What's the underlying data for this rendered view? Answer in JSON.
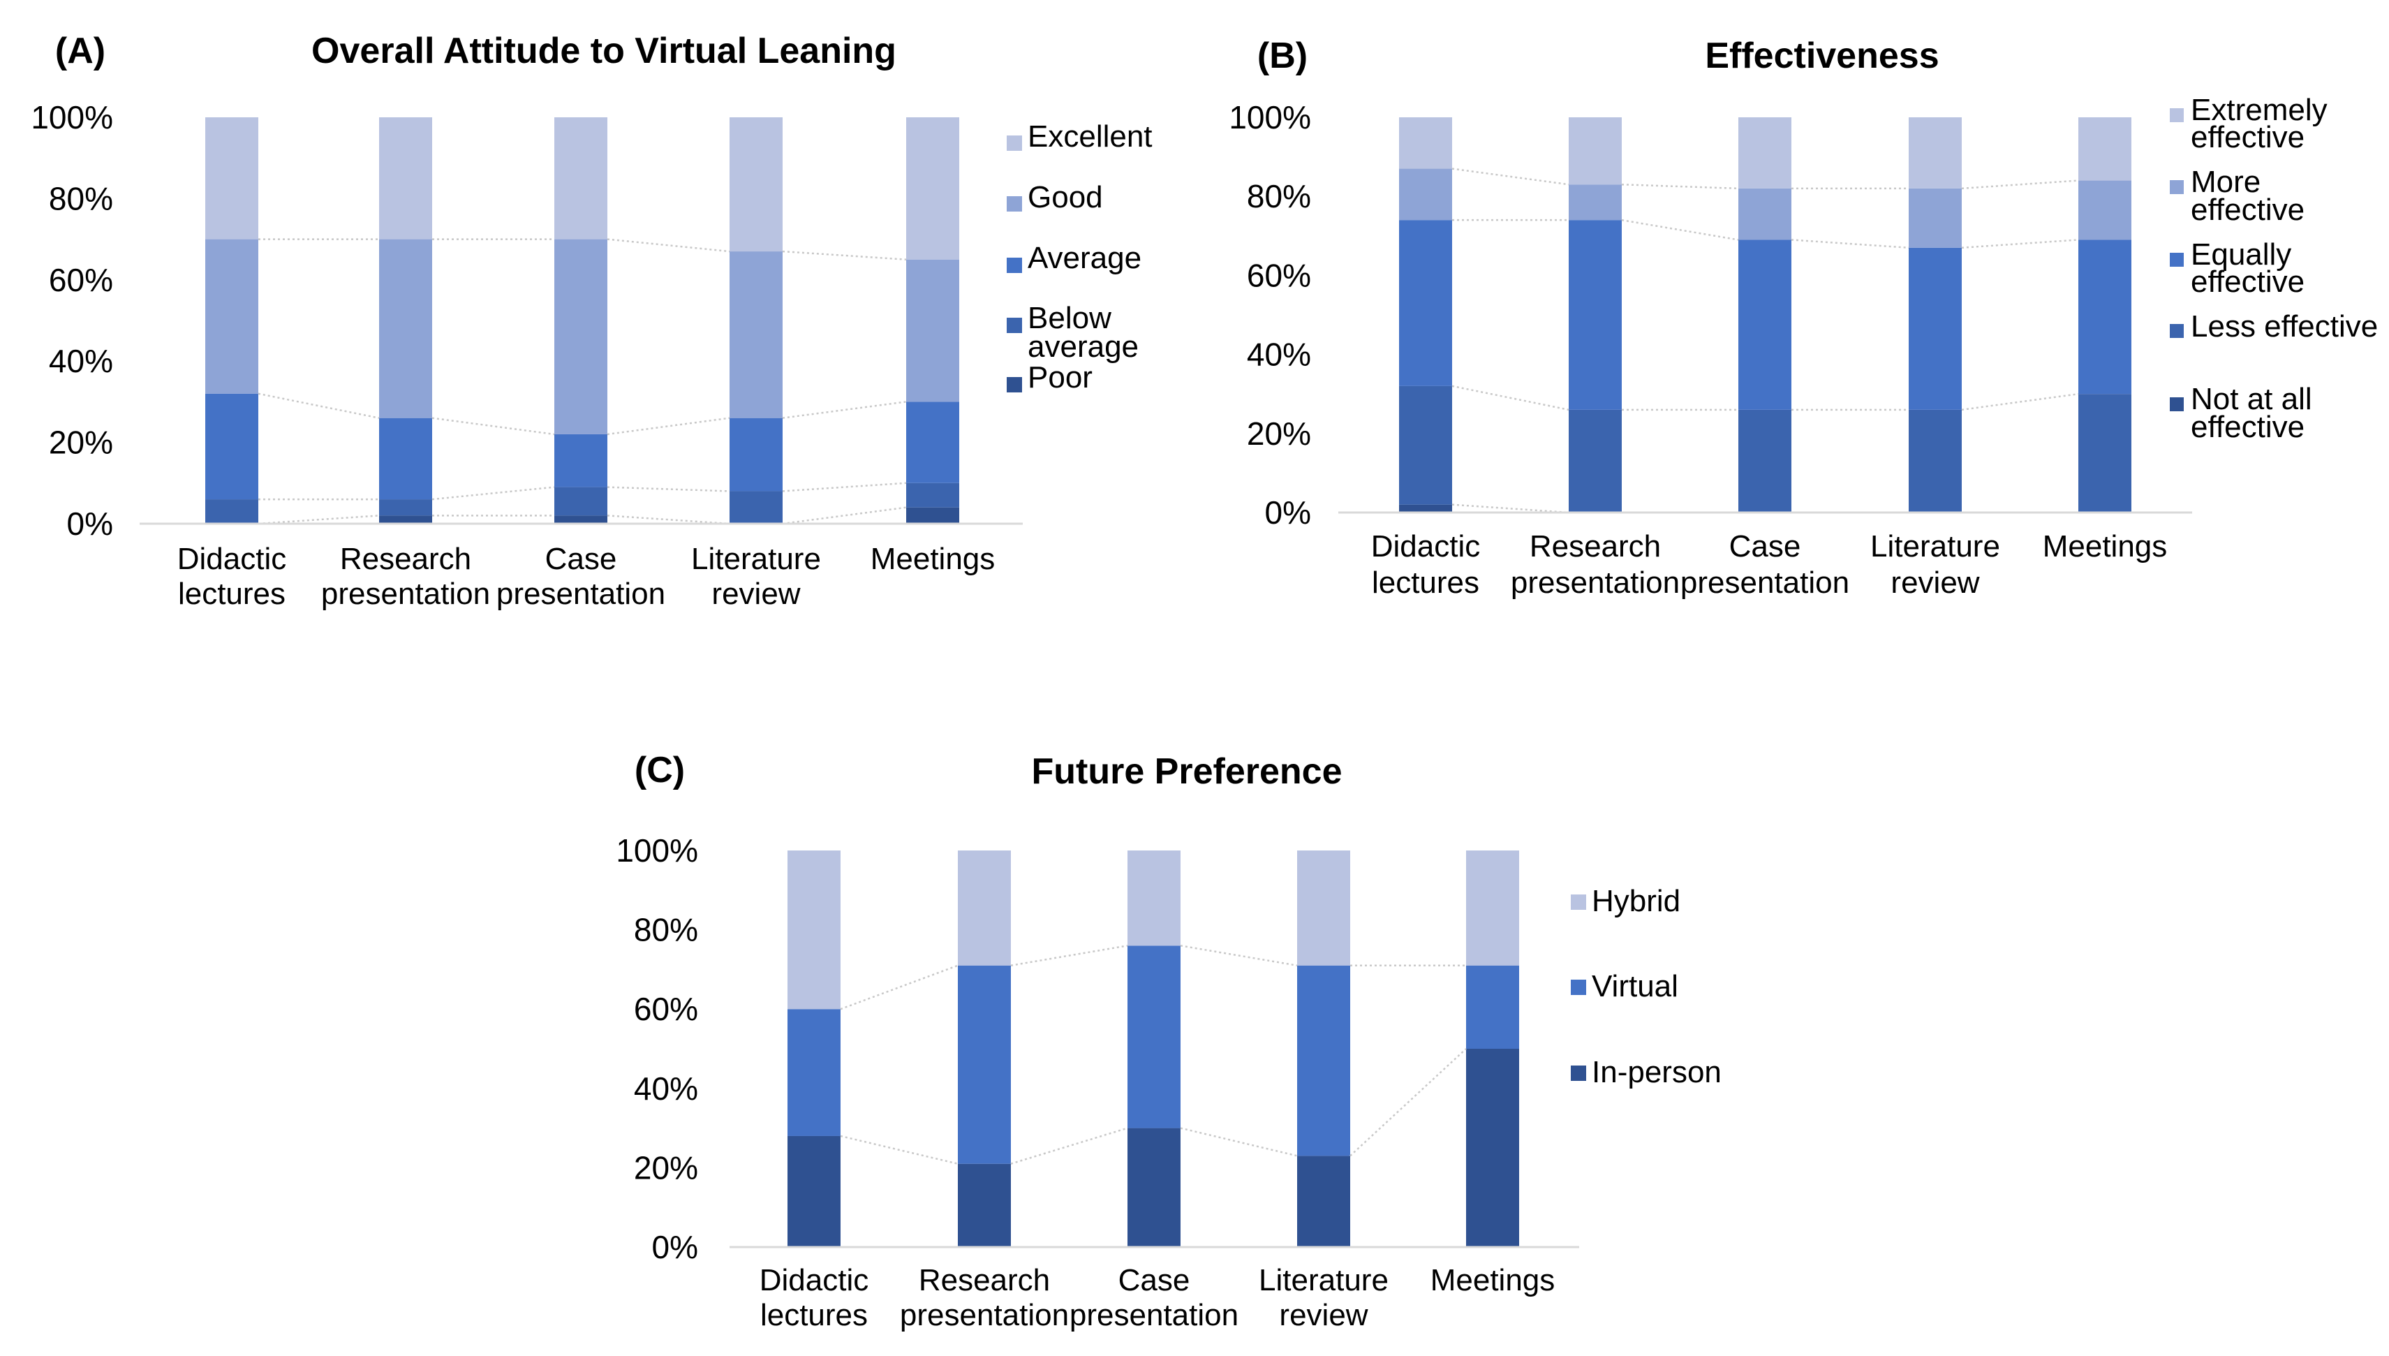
{
  "colors": {
    "c_lightest": "#b9c3e1",
    "c_light": "#8ea4d6",
    "c_mid": "#4472c6",
    "c_dark": "#3b64ae",
    "c_darkest": "#2f5191"
  },
  "chart_data": [
    {
      "id": "A",
      "panel_label": "(A)",
      "type": "bar",
      "stacked": "percent",
      "title": "Overall Attitude to Virtual Leaning",
      "categories": [
        [
          "Didactic",
          "lectures"
        ],
        [
          "Research",
          "presentation"
        ],
        [
          "Case",
          "presentation"
        ],
        [
          "Literature",
          "review"
        ],
        [
          "Meetings"
        ]
      ],
      "y_ticks": [
        "0%",
        "20%",
        "40%",
        "60%",
        "80%",
        "100%"
      ],
      "ylim": [
        0,
        100
      ],
      "legend_position": "right",
      "series": [
        {
          "name": [
            "Poor"
          ],
          "color": "#2f5191",
          "values": [
            0,
            2,
            2,
            0,
            4
          ]
        },
        {
          "name": [
            "Below",
            "average"
          ],
          "color": "#3b64ae",
          "values": [
            6,
            4,
            7,
            8,
            6
          ]
        },
        {
          "name": [
            "Average"
          ],
          "color": "#4472c6",
          "values": [
            26,
            20,
            13,
            18,
            20
          ]
        },
        {
          "name": [
            "Good"
          ],
          "color": "#8ea4d6",
          "values": [
            38,
            44,
            48,
            41,
            35
          ]
        },
        {
          "name": [
            "Excellent"
          ],
          "color": "#b9c3e1",
          "values": [
            30,
            30,
            30,
            33,
            35
          ]
        }
      ]
    },
    {
      "id": "B",
      "panel_label": "(B)",
      "type": "bar",
      "stacked": "percent",
      "title": "Effectiveness",
      "categories": [
        [
          "Didactic",
          "lectures"
        ],
        [
          "Research",
          "presentation"
        ],
        [
          "Case",
          "presentation"
        ],
        [
          "Literature",
          "review"
        ],
        [
          "Meetings"
        ]
      ],
      "y_ticks": [
        "0%",
        "20%",
        "40%",
        "60%",
        "80%",
        "100%"
      ],
      "ylim": [
        0,
        100
      ],
      "legend_position": "right",
      "series": [
        {
          "name": [
            "Not at all",
            "effective"
          ],
          "color": "#2f5191",
          "values": [
            2,
            0,
            0,
            0,
            0
          ]
        },
        {
          "name": [
            "Less effective"
          ],
          "color": "#3b64ae",
          "values": [
            30,
            26,
            26,
            26,
            30
          ]
        },
        {
          "name": [
            "Equally",
            "effective"
          ],
          "color": "#4472c6",
          "values": [
            42,
            48,
            43,
            41,
            39
          ]
        },
        {
          "name": [
            "More",
            "effective"
          ],
          "color": "#8ea4d6",
          "values": [
            13,
            9,
            13,
            15,
            15
          ]
        },
        {
          "name": [
            "Extremely",
            "effective"
          ],
          "color": "#b9c3e1",
          "values": [
            13,
            17,
            18,
            18,
            16
          ]
        }
      ]
    },
    {
      "id": "C",
      "panel_label": "(C)",
      "type": "bar",
      "stacked": "percent",
      "title": "Future Preference",
      "categories": [
        [
          "Didactic",
          "lectures"
        ],
        [
          "Research",
          "presentation"
        ],
        [
          "Case",
          "presentation"
        ],
        [
          "Literature",
          "review"
        ],
        [
          "Meetings"
        ]
      ],
      "y_ticks": [
        "0%",
        "20%",
        "40%",
        "60%",
        "80%",
        "100%"
      ],
      "ylim": [
        0,
        100
      ],
      "legend_position": "right",
      "series": [
        {
          "name": [
            "In-person"
          ],
          "color": "#2f5191",
          "values": [
            28,
            21,
            30,
            23,
            50
          ]
        },
        {
          "name": [
            "Virtual"
          ],
          "color": "#4472c6",
          "values": [
            32,
            50,
            46,
            48,
            21
          ]
        },
        {
          "name": [
            "Hybrid"
          ],
          "color": "#b9c3e1",
          "values": [
            40,
            29,
            24,
            29,
            29
          ]
        }
      ]
    }
  ]
}
